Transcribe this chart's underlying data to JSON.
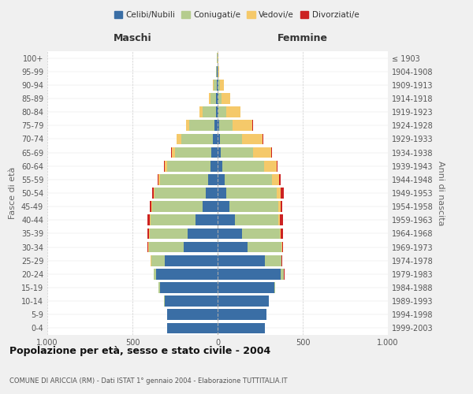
{
  "age_groups": [
    "0-4",
    "5-9",
    "10-14",
    "15-19",
    "20-24",
    "25-29",
    "30-34",
    "35-39",
    "40-44",
    "45-49",
    "50-54",
    "55-59",
    "60-64",
    "65-69",
    "70-74",
    "75-79",
    "80-84",
    "85-89",
    "90-94",
    "95-99",
    "100+"
  ],
  "birth_years": [
    "1999-2003",
    "1994-1998",
    "1989-1993",
    "1984-1988",
    "1979-1983",
    "1974-1978",
    "1969-1973",
    "1964-1968",
    "1959-1963",
    "1954-1958",
    "1949-1953",
    "1944-1948",
    "1939-1943",
    "1934-1938",
    "1929-1933",
    "1924-1928",
    "1919-1923",
    "1914-1918",
    "1909-1913",
    "1904-1908",
    "≤ 1903"
  ],
  "male": {
    "celibi": [
      295,
      295,
      310,
      340,
      360,
      310,
      200,
      175,
      130,
      90,
      70,
      55,
      40,
      35,
      30,
      20,
      10,
      8,
      5,
      3,
      2
    ],
    "coniugati": [
      0,
      1,
      3,
      5,
      15,
      80,
      205,
      225,
      265,
      295,
      300,
      285,
      255,
      215,
      185,
      145,
      80,
      35,
      18,
      5,
      2
    ],
    "vedovi": [
      0,
      0,
      0,
      0,
      1,
      2,
      2,
      2,
      2,
      2,
      3,
      5,
      15,
      20,
      25,
      20,
      15,
      8,
      4,
      1,
      0
    ],
    "divorziati": [
      0,
      0,
      0,
      0,
      1,
      3,
      5,
      10,
      15,
      10,
      12,
      8,
      5,
      3,
      3,
      2,
      0,
      0,
      0,
      0,
      0
    ]
  },
  "female": {
    "nubili": [
      280,
      285,
      300,
      335,
      370,
      280,
      175,
      145,
      100,
      70,
      50,
      40,
      30,
      20,
      15,
      10,
      5,
      5,
      3,
      2,
      1
    ],
    "coniugate": [
      0,
      1,
      2,
      5,
      20,
      95,
      200,
      220,
      255,
      285,
      295,
      280,
      245,
      190,
      130,
      80,
      45,
      20,
      12,
      3,
      1
    ],
    "vedove": [
      0,
      0,
      0,
      0,
      1,
      2,
      3,
      5,
      10,
      15,
      25,
      40,
      70,
      105,
      120,
      115,
      85,
      50,
      20,
      5,
      2
    ],
    "divorziate": [
      0,
      0,
      0,
      0,
      1,
      3,
      5,
      12,
      20,
      10,
      18,
      12,
      8,
      5,
      3,
      2,
      1,
      1,
      0,
      0,
      0
    ]
  },
  "colors": {
    "celibi_nubili": "#3a6ea5",
    "coniugati": "#b5cc8e",
    "vedovi": "#f5c96a",
    "divorziati": "#cc2222"
  },
  "title": "Popolazione per età, sesso e stato civile - 2004",
  "subtitle": "COMUNE DI ARICCIA (RM) - Dati ISTAT 1° gennaio 2004 - Elaborazione TUTTITALIA.IT",
  "xlabel_left": "Maschi",
  "xlabel_right": "Femmine",
  "ylabel_left": "Fasce di età",
  "ylabel_right": "Anni di nascita",
  "xlim": 1000,
  "xtick_labels": [
    "1.000",
    "500",
    "0",
    "500",
    "1.000"
  ],
  "legend_labels": [
    "Celibi/Nubili",
    "Coniugati/e",
    "Vedovi/e",
    "Divorziati/e"
  ],
  "bg_color": "#f0f0f0",
  "plot_bg": "#ffffff",
  "grid_color": "#cccccc"
}
